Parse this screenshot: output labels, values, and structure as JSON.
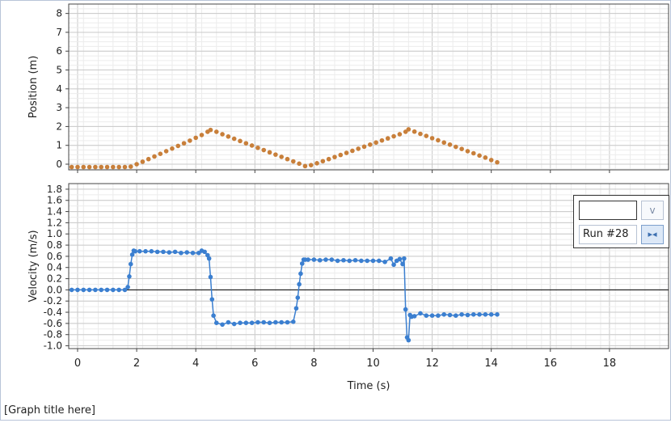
{
  "graph_title": "[Graph title here]",
  "legend": {
    "selector_value": "",
    "dropdown_icon": "chevron-down-icon",
    "dropdown_glyph": "v",
    "run_label": "Run #28",
    "toggle_icon": "bowtie-icon",
    "toggle_glyph": "▸◂"
  },
  "colors": {
    "position": "#c87f3a",
    "velocity": "#3b7fd0"
  },
  "chart_data": [
    {
      "type": "scatter",
      "name": "position-graph",
      "ylabel": "Position (m)",
      "xlim": [
        -0.3,
        20
      ],
      "ylim": [
        -0.3,
        8.5
      ],
      "yticks": [
        0,
        1,
        2,
        3,
        4,
        5,
        6,
        7,
        8
      ],
      "grid": true,
      "x": [
        -0.2,
        0.0,
        0.2,
        0.4,
        0.6,
        0.8,
        1.0,
        1.2,
        1.4,
        1.6,
        1.8,
        2.0,
        2.2,
        2.4,
        2.6,
        2.8,
        3.0,
        3.2,
        3.4,
        3.6,
        3.8,
        4.0,
        4.2,
        4.4,
        4.5,
        4.7,
        4.9,
        5.1,
        5.3,
        5.5,
        5.7,
        5.9,
        6.1,
        6.3,
        6.5,
        6.7,
        6.9,
        7.1,
        7.3,
        7.5,
        7.7,
        7.9,
        8.1,
        8.3,
        8.5,
        8.7,
        8.9,
        9.1,
        9.3,
        9.5,
        9.7,
        9.9,
        10.1,
        10.3,
        10.5,
        10.7,
        10.9,
        11.1,
        11.2,
        11.4,
        11.6,
        11.8,
        12.0,
        12.2,
        12.4,
        12.6,
        12.8,
        13.0,
        13.2,
        13.4,
        13.6,
        13.8,
        14.0,
        14.2
      ],
      "y": [
        -0.15,
        -0.15,
        -0.15,
        -0.15,
        -0.15,
        -0.15,
        -0.15,
        -0.15,
        -0.15,
        -0.15,
        -0.13,
        0.0,
        0.13,
        0.27,
        0.41,
        0.55,
        0.69,
        0.83,
        0.97,
        1.11,
        1.25,
        1.4,
        1.55,
        1.72,
        1.82,
        1.72,
        1.59,
        1.47,
        1.35,
        1.23,
        1.11,
        0.99,
        0.87,
        0.75,
        0.63,
        0.51,
        0.39,
        0.27,
        0.15,
        0.03,
        -0.1,
        -0.05,
        0.05,
        0.16,
        0.27,
        0.38,
        0.49,
        0.6,
        0.71,
        0.82,
        0.93,
        1.04,
        1.15,
        1.26,
        1.37,
        1.48,
        1.59,
        1.72,
        1.85,
        1.73,
        1.61,
        1.5,
        1.38,
        1.27,
        1.15,
        1.04,
        0.92,
        0.81,
        0.69,
        0.58,
        0.46,
        0.35,
        0.22,
        0.1
      ]
    },
    {
      "type": "scatter",
      "name": "velocity-graph",
      "xlabel": "Time (s)",
      "ylabel": "Velocity (m/s)",
      "xlim": [
        -0.3,
        20
      ],
      "ylim": [
        -1.05,
        1.9
      ],
      "xticks": [
        0,
        2,
        4,
        6,
        8,
        10,
        12,
        14,
        16,
        18
      ],
      "yticks": [
        -1.0,
        -0.8,
        -0.6,
        -0.4,
        -0.2,
        0.0,
        0.2,
        0.4,
        0.6,
        0.8,
        1.0,
        1.2,
        1.4,
        1.6,
        1.8
      ],
      "grid": true,
      "x": [
        -0.2,
        0.0,
        0.2,
        0.4,
        0.6,
        0.8,
        1.0,
        1.2,
        1.4,
        1.6,
        1.7,
        1.75,
        1.8,
        1.85,
        1.9,
        1.95,
        2.1,
        2.3,
        2.5,
        2.7,
        2.9,
        3.1,
        3.3,
        3.5,
        3.7,
        3.9,
        4.1,
        4.2,
        4.3,
        4.4,
        4.45,
        4.5,
        4.55,
        4.6,
        4.7,
        4.9,
        5.1,
        5.3,
        5.5,
        5.7,
        5.9,
        6.1,
        6.3,
        6.5,
        6.7,
        6.9,
        7.1,
        7.3,
        7.4,
        7.45,
        7.5,
        7.55,
        7.6,
        7.65,
        7.7,
        7.8,
        8.0,
        8.2,
        8.4,
        8.6,
        8.8,
        9.0,
        9.2,
        9.4,
        9.6,
        9.8,
        10.0,
        10.2,
        10.4,
        10.6,
        10.7,
        10.8,
        10.9,
        11.0,
        11.05,
        11.1,
        11.15,
        11.2,
        11.25,
        11.3,
        11.4,
        11.6,
        11.8,
        12.0,
        12.2,
        12.4,
        12.6,
        12.8,
        13.0,
        13.2,
        13.4,
        13.6,
        13.8,
        14.0,
        14.2
      ],
      "y": [
        0.0,
        0.0,
        0.0,
        0.0,
        0.0,
        0.0,
        0.0,
        0.0,
        0.0,
        0.0,
        0.05,
        0.24,
        0.46,
        0.63,
        0.7,
        0.69,
        0.69,
        0.69,
        0.69,
        0.68,
        0.68,
        0.67,
        0.68,
        0.66,
        0.67,
        0.66,
        0.66,
        0.7,
        0.68,
        0.62,
        0.56,
        0.23,
        -0.17,
        -0.46,
        -0.59,
        -0.62,
        -0.58,
        -0.61,
        -0.59,
        -0.59,
        -0.59,
        -0.58,
        -0.58,
        -0.59,
        -0.58,
        -0.58,
        -0.58,
        -0.57,
        -0.33,
        -0.14,
        0.1,
        0.29,
        0.47,
        0.54,
        0.54,
        0.54,
        0.54,
        0.53,
        0.54,
        0.54,
        0.52,
        0.53,
        0.52,
        0.53,
        0.52,
        0.52,
        0.52,
        0.52,
        0.5,
        0.56,
        0.45,
        0.52,
        0.55,
        0.46,
        0.56,
        -0.35,
        -0.85,
        -0.9,
        -0.45,
        -0.48,
        -0.47,
        -0.42,
        -0.46,
        -0.46,
        -0.46,
        -0.44,
        -0.45,
        -0.46,
        -0.44,
        -0.45,
        -0.44,
        -0.44,
        -0.44,
        -0.44,
        -0.44
      ]
    }
  ]
}
